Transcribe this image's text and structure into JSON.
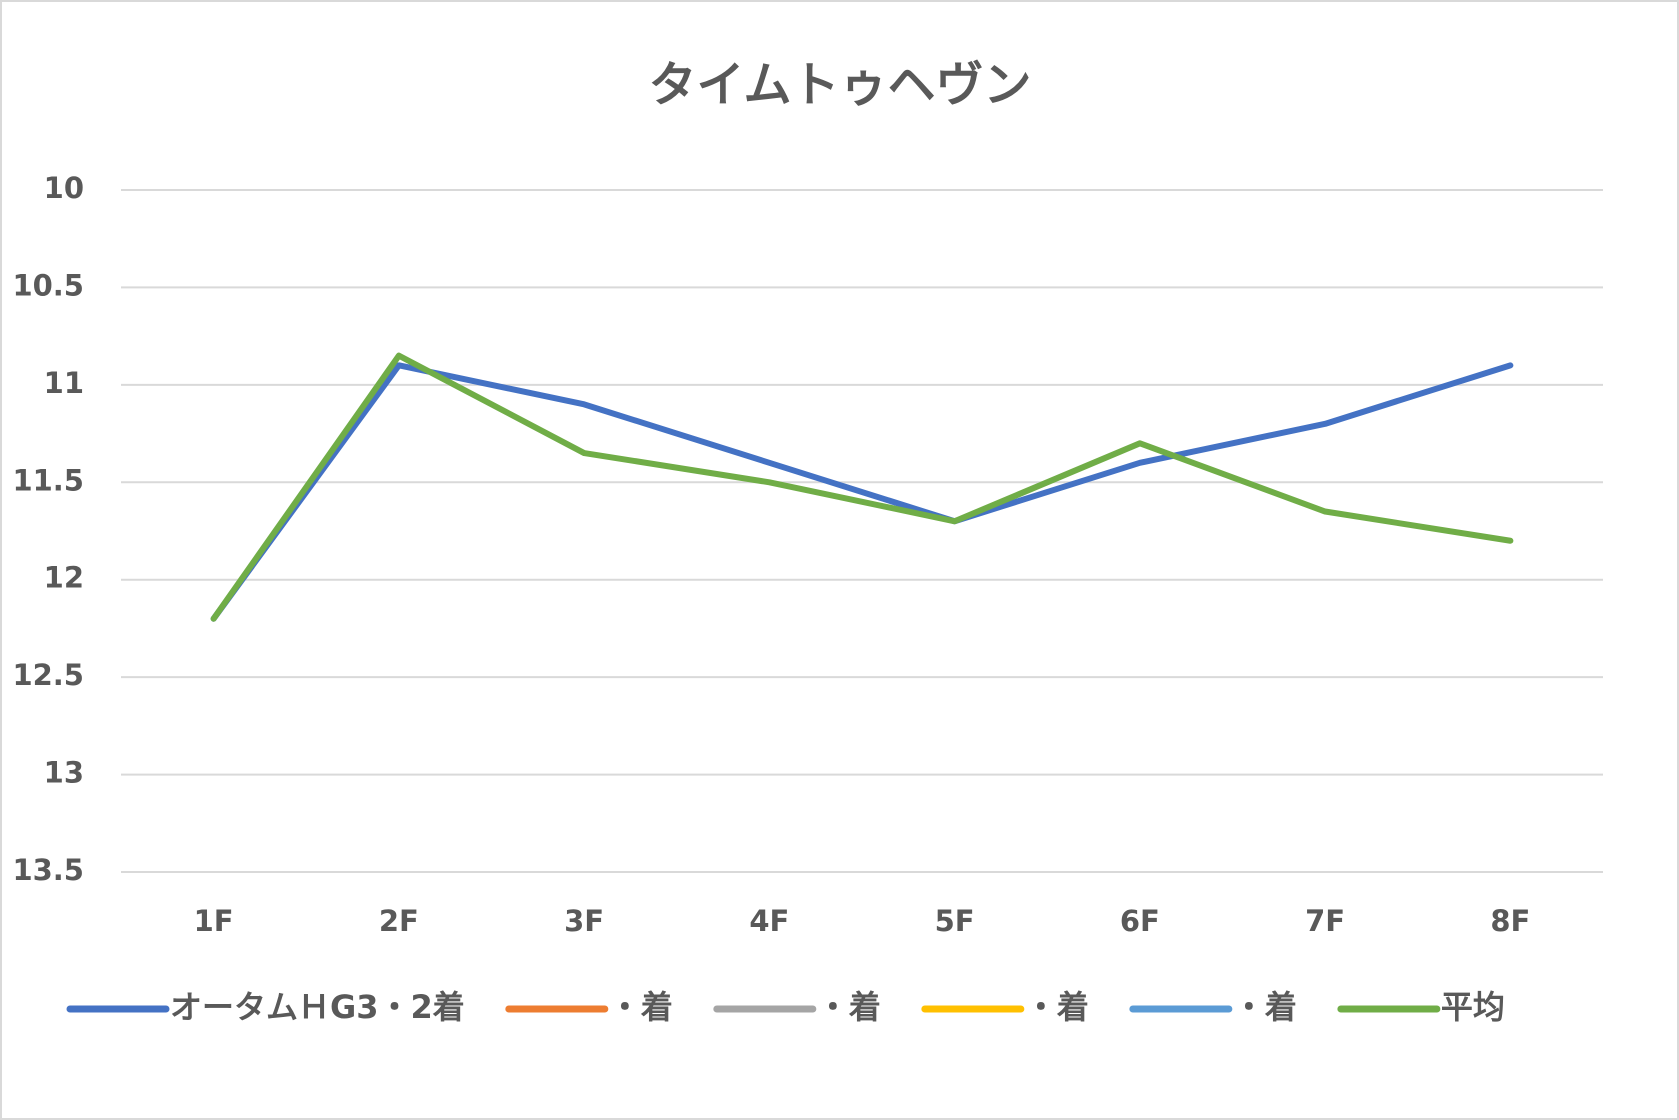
{
  "chart_data": {
    "type": "line",
    "title": "タイムトゥヘヴン",
    "categories": [
      "1F",
      "2F",
      "3F",
      "4F",
      "5F",
      "6F",
      "7F",
      "8F"
    ],
    "series": [
      {
        "name": "オータムＨG3・2着",
        "color": "#4472c4",
        "values": [
          12.2,
          10.9,
          11.1,
          11.4,
          11.7,
          11.4,
          11.2,
          10.9
        ]
      },
      {
        "name": "・着",
        "color": "#ed7d31",
        "values": [
          null,
          null,
          null,
          null,
          null,
          null,
          null,
          null
        ]
      },
      {
        "name": "・着",
        "color": "#a5a5a5",
        "values": [
          null,
          null,
          null,
          null,
          null,
          null,
          null,
          null
        ]
      },
      {
        "name": "・着",
        "color": "#ffc000",
        "values": [
          null,
          null,
          null,
          null,
          null,
          null,
          null,
          null
        ]
      },
      {
        "name": "・着",
        "color": "#5b9bd5",
        "values": [
          null,
          null,
          null,
          null,
          null,
          null,
          null,
          null
        ]
      },
      {
        "name": "平均",
        "color": "#70ad47",
        "values": [
          12.2,
          10.85,
          11.35,
          11.5,
          11.7,
          11.3,
          11.65,
          11.8
        ]
      }
    ],
    "ylim": [
      10,
      13.5
    ],
    "y_reversed": true,
    "yticks": [
      10,
      10.5,
      11,
      11.5,
      12,
      12.5,
      13,
      13.5
    ],
    "grid": true,
    "legend": "bottom"
  }
}
